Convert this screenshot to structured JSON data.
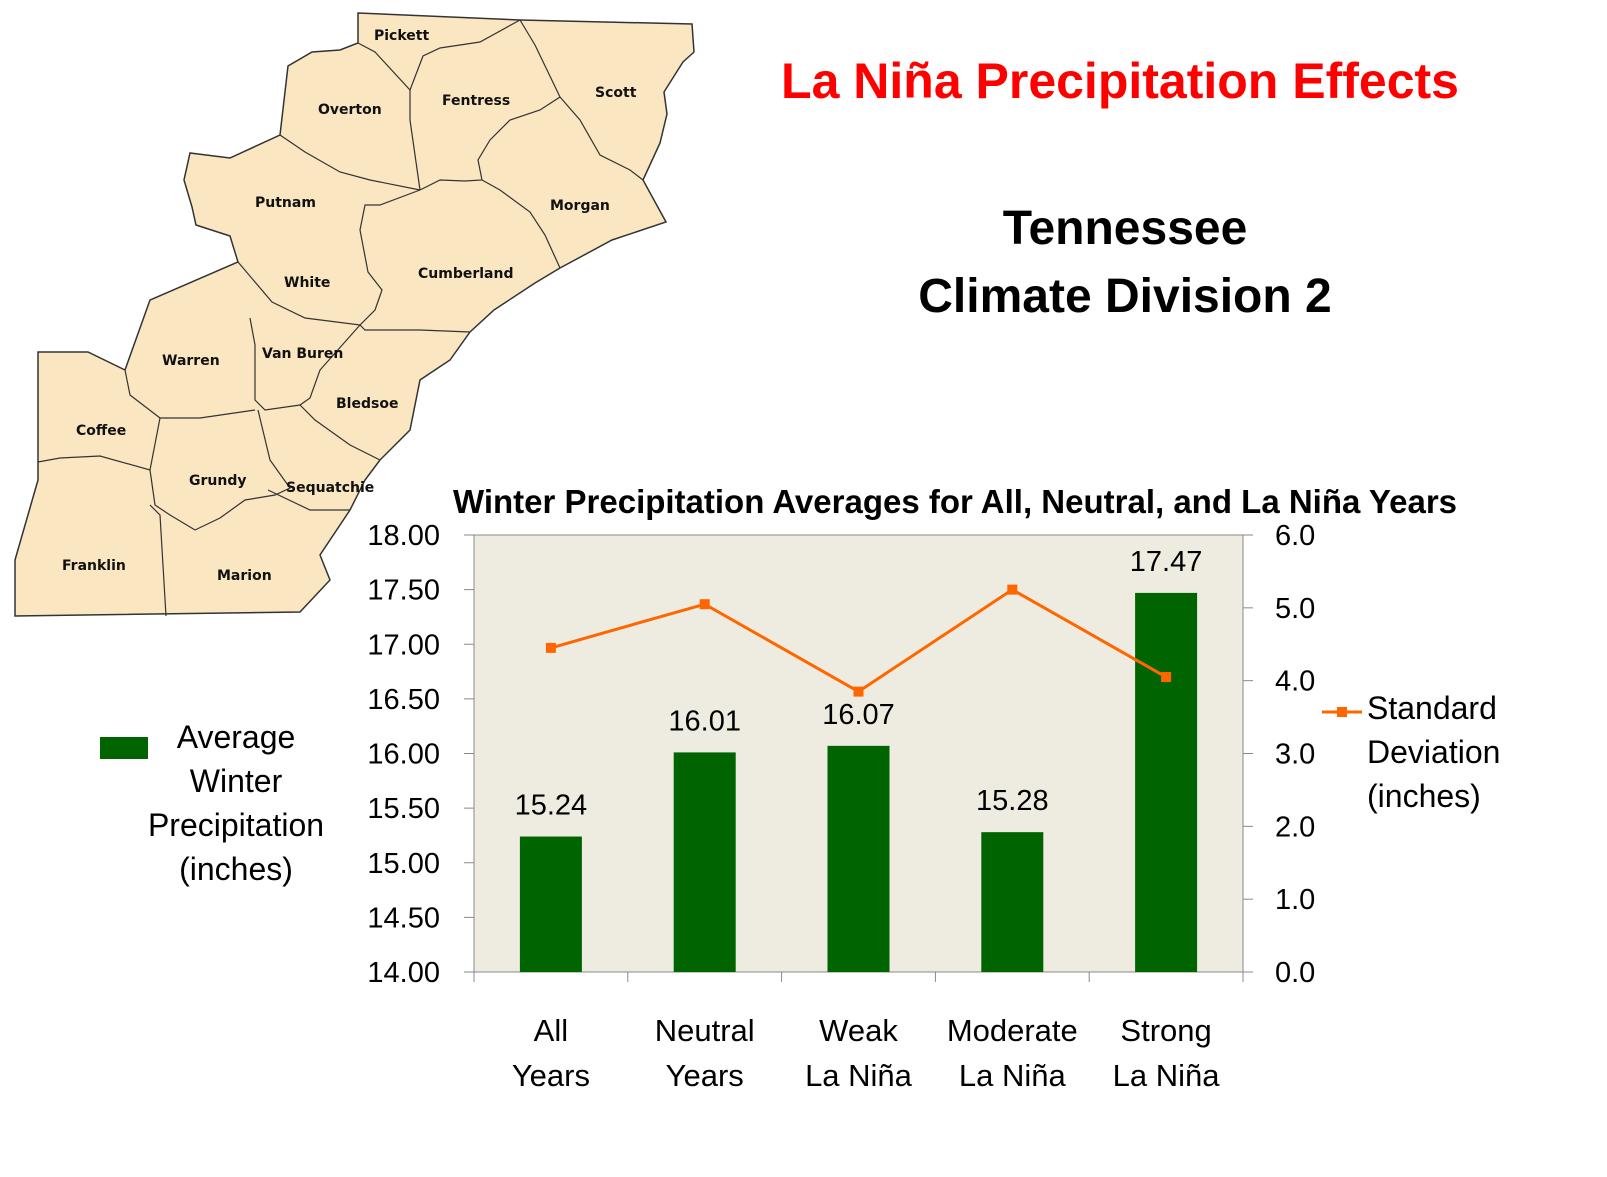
{
  "title": "La Niña Precipitation Effects",
  "subtitle_lines": [
    "Tennessee",
    "Climate Division 2"
  ],
  "colors": {
    "title": "#ff0000",
    "bar": "#006400",
    "line": "#ff6600",
    "plot_bg": "#eeece1",
    "map_fill": "#fae6c0"
  },
  "map": {
    "counties": [
      "Pickett",
      "Overton",
      "Fentress",
      "Scott",
      "Putnam",
      "Morgan",
      "White",
      "Cumberland",
      "Warren",
      "Van Buren",
      "Bledsoe",
      "Coffee",
      "Grundy",
      "Sequatchie",
      "Franklin",
      "Marion"
    ]
  },
  "chart_data": {
    "type": "bar",
    "title": "Winter Precipitation Averages for All, Neutral, and La Niña Years",
    "categories": [
      [
        "All",
        "Years"
      ],
      [
        "Neutral",
        "Years"
      ],
      [
        "Weak",
        "La Niña"
      ],
      [
        "Moderate",
        "La Niña"
      ],
      [
        "Strong",
        "La Niña"
      ]
    ],
    "series": [
      {
        "name": "Average Winter Precipitation (inches)",
        "type": "bar",
        "axis": "left",
        "values": [
          15.24,
          16.01,
          16.07,
          15.28,
          17.47
        ],
        "data_labels": [
          "15.24",
          "16.01",
          "16.07",
          "15.28",
          "17.47"
        ]
      },
      {
        "name": "Standard Deviation (inches)",
        "type": "line",
        "axis": "right",
        "values": [
          4.45,
          5.05,
          3.85,
          5.25,
          4.05
        ]
      }
    ],
    "ylim_left": [
      14.0,
      18.0
    ],
    "ylim_right": [
      0.0,
      6.0
    ],
    "left_ticks": [
      "14.00",
      "14.50",
      "15.00",
      "15.50",
      "16.00",
      "16.50",
      "17.00",
      "17.50",
      "18.00"
    ],
    "right_ticks": [
      "0.0",
      "1.0",
      "2.0",
      "3.0",
      "4.0",
      "5.0",
      "6.0"
    ],
    "legend_left_lines": [
      "Average",
      "Winter",
      "Precipitation",
      "(inches)"
    ],
    "legend_right_lines": [
      "Standard",
      "Deviation",
      "(inches)"
    ],
    "grid": false
  }
}
